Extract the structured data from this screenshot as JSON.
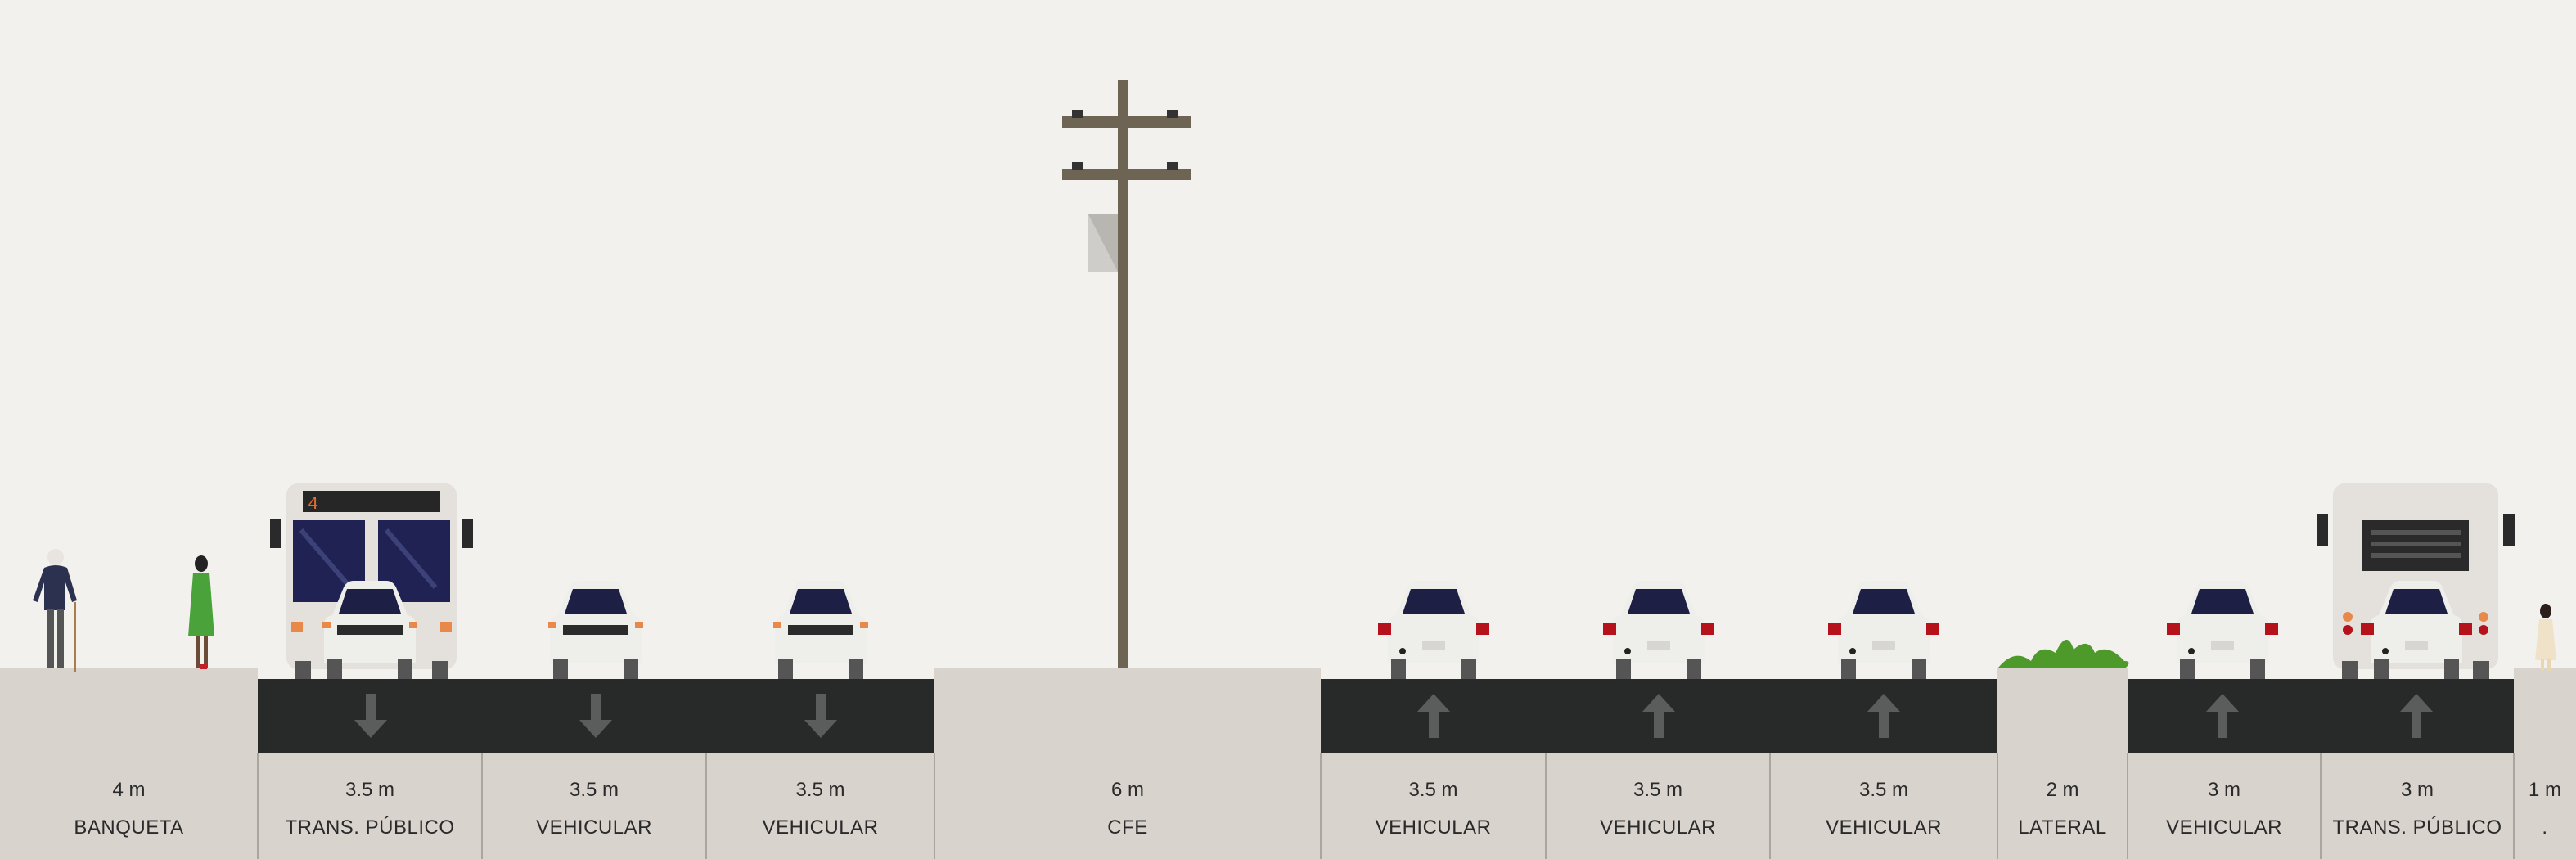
{
  "segments": [
    {
      "width": "4 m",
      "name": "BANQUETA",
      "type": "sidewalk"
    },
    {
      "width": "3.5 m",
      "name": "TRANS. PÚBLICO",
      "type": "bus-lane",
      "direction": "down"
    },
    {
      "width": "3.5 m",
      "name": "VEHICULAR",
      "type": "car-lane",
      "direction": "down"
    },
    {
      "width": "3.5 m",
      "name": "VEHICULAR",
      "type": "car-lane",
      "direction": "down"
    },
    {
      "width": "6 m",
      "name": "CFE",
      "type": "utility-pole"
    },
    {
      "width": "3.5 m",
      "name": "VEHICULAR",
      "type": "car-lane",
      "direction": "up"
    },
    {
      "width": "3.5 m",
      "name": "VEHICULAR",
      "type": "car-lane",
      "direction": "up"
    },
    {
      "width": "3.5 m",
      "name": "VEHICULAR",
      "type": "car-lane",
      "direction": "up"
    },
    {
      "width": "2 m",
      "name": "LATERAL",
      "type": "planter"
    },
    {
      "width": "3 m",
      "name": "VEHICULAR",
      "type": "car-lane",
      "direction": "up"
    },
    {
      "width": "3 m",
      "name": "TRANS. PÚBLICO",
      "type": "bus-lane",
      "direction": "up"
    },
    {
      "width": "1 m",
      "name": ".",
      "type": "sidewalk"
    }
  ],
  "bus_route_number": "4",
  "colors": {
    "background": "#f3f1ee",
    "asphalt": "#282a29",
    "sidewalk": "#d8d4cd",
    "arrow": "#5b5d5c",
    "pole": "#6e6453",
    "vehicle_body": "#eeeeea",
    "windshield": "#1d1f44",
    "tail_light": "#b5121b",
    "plant": "#4d9a2a"
  }
}
